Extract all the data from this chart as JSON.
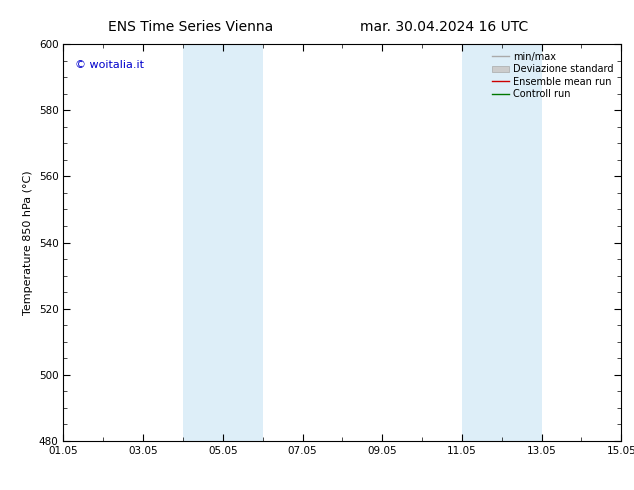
{
  "title_left": "ENS Time Series Vienna",
  "title_right": "mar. 30.04.2024 16 UTC",
  "ylabel": "Temperature 850 hPa (°C)",
  "ylim": [
    480,
    600
  ],
  "yticks": [
    480,
    500,
    520,
    540,
    560,
    580,
    600
  ],
  "x_tick_labels": [
    "01.05",
    "03.05",
    "05.05",
    "07.05",
    "09.05",
    "11.05",
    "13.05",
    "15.05"
  ],
  "x_tick_positions": [
    1,
    3,
    5,
    7,
    9,
    11,
    13,
    15
  ],
  "xlim": [
    1,
    15
  ],
  "shaded_bands": [
    {
      "xstart": 4.0,
      "xend": 6.0,
      "color": "#ddeef8"
    },
    {
      "xstart": 11.0,
      "xend": 13.0,
      "color": "#ddeef8"
    }
  ],
  "watermark": "© woitalia.it",
  "watermark_color": "#0000cc",
  "legend_labels": [
    "min/max",
    "Deviazione standard",
    "Ensemble mean run",
    "Controll run"
  ],
  "background_color": "#ffffff",
  "title_fontsize": 10,
  "tick_fontsize": 7.5,
  "label_fontsize": 8,
  "legend_fontsize": 7
}
